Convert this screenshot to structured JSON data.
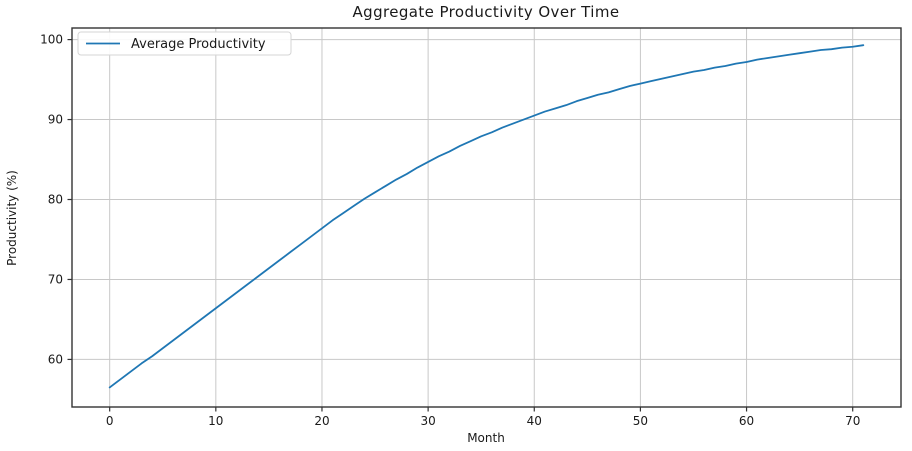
{
  "chart_data": {
    "type": "line",
    "title": "Aggregate Productivity Over Time",
    "xlabel": "Month",
    "ylabel": "Productivity (%)",
    "grid": true,
    "legend_position": "upper-left",
    "xlim": [
      -3.55,
      74.55
    ],
    "ylim": [
      54.05,
      101.45
    ],
    "xticks": [
      0,
      10,
      20,
      30,
      40,
      50,
      60,
      70
    ],
    "yticks": [
      60,
      70,
      80,
      90,
      100
    ],
    "colors": {
      "line": "#1f77b4",
      "grid": "#c8c8c8",
      "spine": "#333333",
      "text": "#1a1a1a",
      "legend_border": "#d5d5d5",
      "legend_background": "#ffffff",
      "plot_background": "#ffffff"
    },
    "series": [
      {
        "name": "Average Productivity",
        "color": "#1f77b4",
        "x": [
          0,
          1,
          2,
          3,
          4,
          5,
          6,
          7,
          8,
          9,
          10,
          11,
          12,
          13,
          14,
          15,
          16,
          17,
          18,
          19,
          20,
          21,
          22,
          23,
          24,
          25,
          26,
          27,
          28,
          29,
          30,
          31,
          32,
          33,
          34,
          35,
          36,
          37,
          38,
          39,
          40,
          41,
          42,
          43,
          44,
          45,
          46,
          47,
          48,
          49,
          50,
          51,
          52,
          53,
          54,
          55,
          56,
          57,
          58,
          59,
          60,
          61,
          62,
          63,
          64,
          65,
          66,
          67,
          68,
          69,
          70,
          71
        ],
        "y": [
          56.5,
          57.5,
          58.5,
          59.5,
          60.4,
          61.4,
          62.4,
          63.4,
          64.4,
          65.4,
          66.4,
          67.4,
          68.4,
          69.4,
          70.4,
          71.4,
          72.4,
          73.4,
          74.4,
          75.4,
          76.4,
          77.4,
          78.3,
          79.2,
          80.1,
          80.9,
          81.7,
          82.5,
          83.2,
          84.0,
          84.7,
          85.4,
          86.0,
          86.7,
          87.3,
          87.9,
          88.4,
          89.0,
          89.5,
          90.0,
          90.5,
          91.0,
          91.4,
          91.8,
          92.3,
          92.7,
          93.1,
          93.4,
          93.8,
          94.2,
          94.5,
          94.8,
          95.1,
          95.4,
          95.7,
          96.0,
          96.2,
          96.5,
          96.7,
          97.0,
          97.2,
          97.5,
          97.7,
          97.9,
          98.1,
          98.3,
          98.5,
          98.7,
          98.8,
          99.0,
          99.1,
          99.3
        ]
      }
    ]
  }
}
